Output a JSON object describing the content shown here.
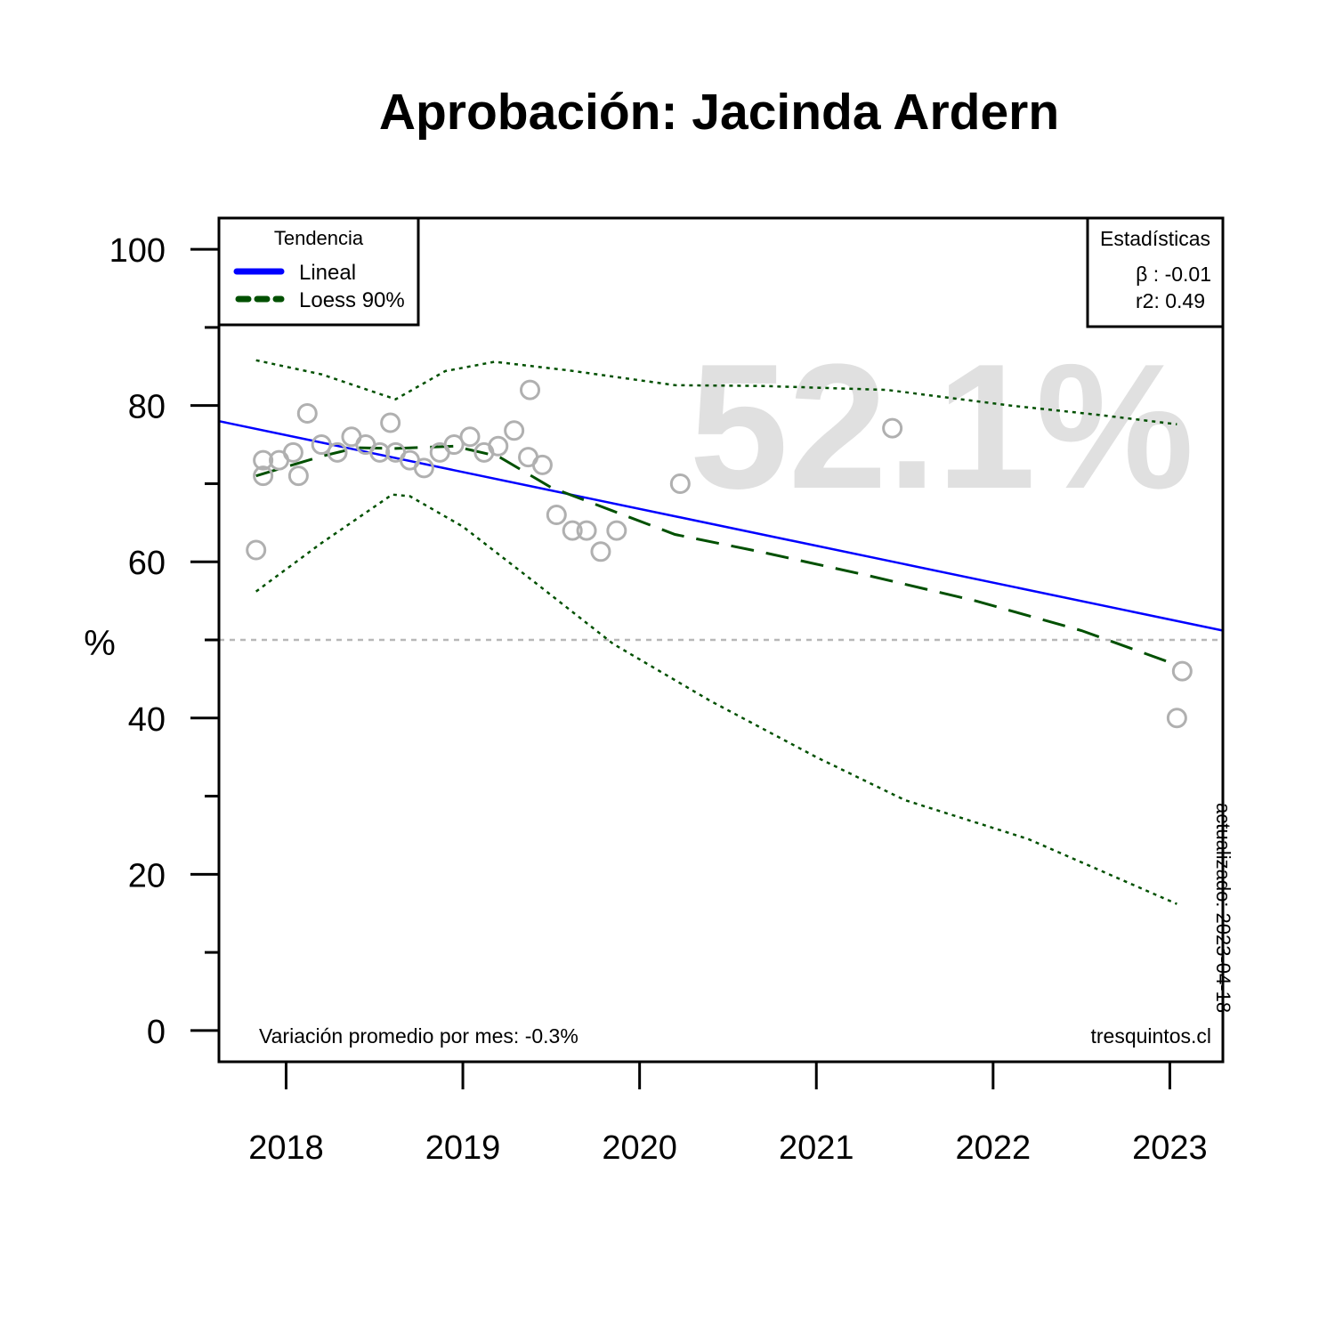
{
  "chart_data": {
    "type": "scatter",
    "title": "Aprobación: Jacinda Ardern",
    "xlabel": "",
    "ylabel": "%",
    "xlim": [
      2017.62,
      2023.3
    ],
    "ylim": [
      -4,
      104
    ],
    "x_ticks": [
      2018,
      2019,
      2020,
      2021,
      2022,
      2023
    ],
    "x_tick_labels": [
      "2018",
      "2019",
      "2020",
      "2021",
      "2022",
      "2023"
    ],
    "y_ticks": [
      0,
      20,
      40,
      60,
      80,
      100
    ],
    "y_tick_labels": [
      "0",
      "20",
      "40",
      "60",
      "80",
      "100"
    ],
    "y_minor_ticks": [
      10,
      30,
      50,
      70,
      90
    ],
    "reference_line_y": 50,
    "big_value": "52.1%",
    "points": [
      {
        "x": 2017.83,
        "y": 61.5
      },
      {
        "x": 2017.87,
        "y": 73
      },
      {
        "x": 2017.87,
        "y": 71
      },
      {
        "x": 2017.96,
        "y": 73
      },
      {
        "x": 2018.04,
        "y": 74
      },
      {
        "x": 2018.07,
        "y": 71
      },
      {
        "x": 2018.12,
        "y": 79
      },
      {
        "x": 2018.2,
        "y": 75
      },
      {
        "x": 2018.29,
        "y": 74
      },
      {
        "x": 2018.37,
        "y": 76
      },
      {
        "x": 2018.45,
        "y": 75
      },
      {
        "x": 2018.53,
        "y": 74
      },
      {
        "x": 2018.59,
        "y": 77.8
      },
      {
        "x": 2018.62,
        "y": 74
      },
      {
        "x": 2018.7,
        "y": 73
      },
      {
        "x": 2018.78,
        "y": 72
      },
      {
        "x": 2018.87,
        "y": 74
      },
      {
        "x": 2018.95,
        "y": 75
      },
      {
        "x": 2019.04,
        "y": 76
      },
      {
        "x": 2019.12,
        "y": 74
      },
      {
        "x": 2019.2,
        "y": 74.8
      },
      {
        "x": 2019.29,
        "y": 76.8
      },
      {
        "x": 2019.37,
        "y": 73.4
      },
      {
        "x": 2019.38,
        "y": 82
      },
      {
        "x": 2019.45,
        "y": 72.4
      },
      {
        "x": 2019.53,
        "y": 66
      },
      {
        "x": 2019.62,
        "y": 64
      },
      {
        "x": 2019.7,
        "y": 64
      },
      {
        "x": 2019.78,
        "y": 61.3
      },
      {
        "x": 2019.87,
        "y": 64
      },
      {
        "x": 2020.23,
        "y": 70
      },
      {
        "x": 2021.43,
        "y": 77.1
      },
      {
        "x": 2023.04,
        "y": 40
      },
      {
        "x": 2023.07,
        "y": 46
      }
    ],
    "series": [
      {
        "name": "Lineal",
        "color": "#0000ff",
        "style": "solid",
        "x": [
          2017.62,
          2023.3
        ],
        "y": [
          78,
          51.2
        ]
      },
      {
        "name": "Loess 90%",
        "color": "#005000",
        "style": "dashed",
        "x": [
          2017.83,
          2018.2,
          2018.4,
          2018.62,
          2018.95,
          2019.2,
          2019.5,
          2019.85,
          2020.2,
          2020.7,
          2021.3,
          2021.9,
          2022.5,
          2023.04
        ],
        "y": [
          71,
          73.5,
          74.6,
          74.5,
          74.8,
          73.5,
          69.5,
          66.5,
          63.5,
          61.2,
          58.2,
          55,
          51.2,
          46.8
        ]
      },
      {
        "name": "",
        "color": "#005000",
        "style": "dotted",
        "x": [
          2017.83,
          2018.2,
          2018.62,
          2018.9,
          2019.18,
          2019.6,
          2020.2,
          2020.7,
          2021.4,
          2022.1,
          2022.6,
          2023.04
        ],
        "y": [
          85.8,
          84,
          80.8,
          84.4,
          85.6,
          84.5,
          82.6,
          82.5,
          82,
          80,
          78.8,
          77.6
        ]
      },
      {
        "name": "",
        "color": "#005000",
        "style": "dotted",
        "x": [
          2017.83,
          2018.2,
          2018.6,
          2018.7,
          2019.0,
          2019.4,
          2019.85,
          2020.4,
          2021.0,
          2021.5,
          2022.2,
          2023.04
        ],
        "y": [
          56.2,
          62.4,
          68.6,
          68.4,
          64.5,
          57.5,
          49.5,
          42.2,
          35,
          29.5,
          24.5,
          16.2
        ]
      }
    ],
    "legend_trend": {
      "title": "Tendencia",
      "entries": [
        "Lineal",
        "Loess 90%"
      ],
      "position": "top-left"
    },
    "legend_stats": {
      "title": "Estadísticas",
      "beta": "β : -0.01",
      "r2": "r2: 0.49",
      "position": "top-right"
    },
    "footer_left": "Variación promedio por mes: -0.3%",
    "footer_right": "tresquintos.cl",
    "updated_note": "actualizado: 2023-04-18",
    "colors": {
      "points": "#b0b0b0",
      "big_value": "#e0e0e0",
      "reference_line": "#b8b8b8"
    }
  }
}
